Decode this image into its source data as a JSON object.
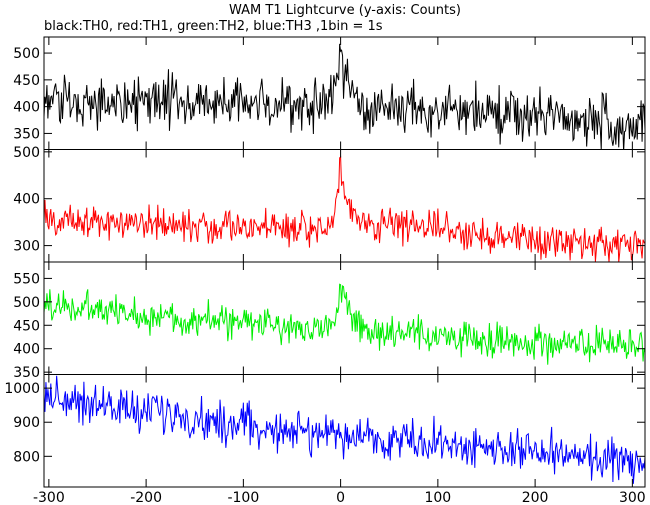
{
  "chart_data": {
    "type": "line",
    "title": "WAM T1 Lightcurve (y-axis: Counts)",
    "subtitle": "black:TH0, red:TH1, green:TH2, blue:TH3 ,1bin = 1s",
    "xlim": [
      -305,
      313
    ],
    "x_ticks": [
      -300,
      -200,
      -100,
      0,
      100,
      200,
      300
    ],
    "x_step": 1,
    "grid": false,
    "panels": [
      {
        "name": "TH0",
        "color": "#000000",
        "ylim": [
          320,
          530
        ],
        "y_ticks": [
          350,
          400,
          450,
          500
        ],
        "base": [
          [
            -305,
            410
          ],
          [
            -100,
            405
          ],
          [
            -10,
            402
          ],
          [
            310,
            370
          ]
        ],
        "noise": 24,
        "peak": {
          "x": 0,
          "height": 105,
          "rise": 6,
          "decay": 8
        }
      },
      {
        "name": "TH1",
        "color": "#ff0000",
        "ylim": [
          265,
          505
        ],
        "y_ticks": [
          300,
          400,
          500
        ],
        "base": [
          [
            -305,
            355
          ],
          [
            -100,
            340
          ],
          [
            -10,
            335
          ],
          [
            15,
            350
          ],
          [
            310,
            295
          ]
        ],
        "noise": 18,
        "peak": {
          "x": 0,
          "height": 135,
          "rise": 5,
          "decay": 7
        }
      },
      {
        "name": "TH2",
        "color": "#00ee00",
        "ylim": [
          345,
          585
        ],
        "y_ticks": [
          350,
          400,
          450,
          500,
          550
        ],
        "base": [
          [
            -305,
            495
          ],
          [
            -200,
            470
          ],
          [
            -100,
            455
          ],
          [
            -10,
            442
          ],
          [
            20,
            435
          ],
          [
            310,
            400
          ]
        ],
        "noise": 18,
        "peak": {
          "x": 0,
          "height": 105,
          "rise": 4,
          "decay": 9
        }
      },
      {
        "name": "TH3",
        "color": "#0000ff",
        "ylim": [
          710,
          1040
        ],
        "y_ticks": [
          800,
          900,
          1000
        ],
        "base": [
          [
            -305,
            980
          ],
          [
            -200,
            930
          ],
          [
            -100,
            890
          ],
          [
            0,
            860
          ],
          [
            100,
            840
          ],
          [
            200,
            810
          ],
          [
            310,
            780
          ]
        ],
        "noise": 30,
        "peak": null
      }
    ]
  }
}
